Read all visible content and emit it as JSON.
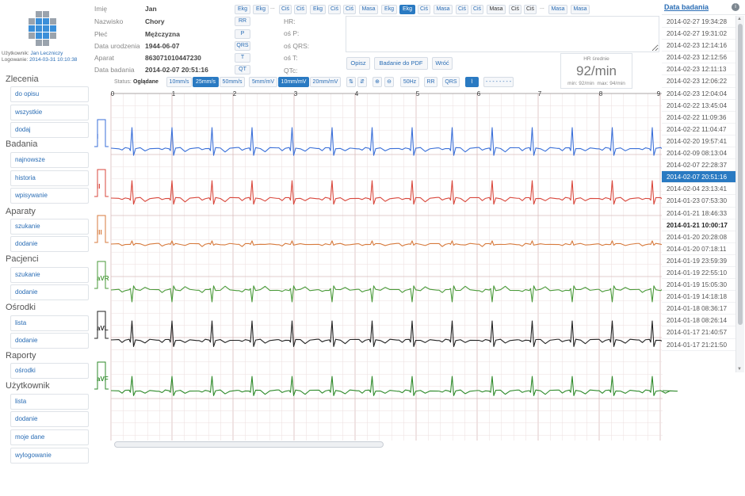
{
  "user": {
    "user_label": "Użytkownik:",
    "user_name": "Jan Leczniczy",
    "login_label": "Logowanie:",
    "login_time": "2014-03-31 10:10:38"
  },
  "sidebar": {
    "sections": [
      {
        "title": "Zlecenia",
        "items": [
          "do opisu",
          "wszystkie",
          "dodaj"
        ]
      },
      {
        "title": "Badania",
        "items": [
          "najnowsze",
          "historia",
          "wpisywanie"
        ]
      },
      {
        "title": "Aparaty",
        "items": [
          "szukanie",
          "dodanie"
        ]
      },
      {
        "title": "Pacjenci",
        "items": [
          "szukanie",
          "dodanie"
        ]
      },
      {
        "title": "Ośrodki",
        "items": [
          "lista",
          "dodanie"
        ]
      },
      {
        "title": "Raporty",
        "items": [
          "ośrodki"
        ]
      },
      {
        "title": "Użytkownik",
        "items": [
          "lista",
          "dodanie",
          "moje dane",
          "wylogowanie"
        ]
      }
    ]
  },
  "patient": {
    "first_name_label": "Imię",
    "first_name": "Jan",
    "last_name_label": "Nazwisko",
    "last_name": "Chory",
    "sex_label": "Płeć",
    "sex": "Mężczyzna",
    "birth_label": "Data urodzenia",
    "birth": "1944-06-07",
    "device_label": "Aparat",
    "device": "863071010447230",
    "exam_label": "Data badania",
    "exam": "2014-02-07 20:51:16"
  },
  "measure_buttons": [
    "RR",
    "P",
    "QRS",
    "T",
    "QT"
  ],
  "measure_labels": [
    "HR:",
    "oś P:",
    "oś QRS:",
    "oś T:",
    "QTc:"
  ],
  "history_tabs": [
    "Ekg",
    "Ekg",
    "Ciś",
    "Ciś",
    "Ekg",
    "Ciś",
    "Ciś",
    "Masa",
    "Ekg",
    "Ekg",
    "Ciś",
    "Masa",
    "Ciś",
    "Ciś",
    "Masa",
    "Ciś",
    "Ciś",
    "Masa",
    "Masa"
  ],
  "history_sep": "...",
  "actions": {
    "describe": "Opisz",
    "pdf": "Badanie do PDF",
    "back": "Wróć"
  },
  "hr": {
    "title": "HR średnie",
    "value": "92/min",
    "min": "min: 92/min",
    "max": "max: 94/min"
  },
  "toolbar": {
    "status_label": "Status:",
    "status_value": "Oglądane",
    "speeds": [
      "10mm/s",
      "25mm/s",
      "50mm/s"
    ],
    "gains": [
      "5mm/mV",
      "10mm/mV",
      "20mm/mV"
    ],
    "filter": "50Hz",
    "rr": "RR",
    "qrs": "QRS",
    "dots": "- - - - - - - -"
  },
  "ecg": {
    "time_ticks": [
      "0",
      "1",
      "2",
      "3",
      "4",
      "5",
      "6",
      "7",
      "8",
      "9"
    ],
    "leads": [
      {
        "name": "I",
        "color": "#3a6fd8"
      },
      {
        "name": "II",
        "color": "#d9473c"
      },
      {
        "name": "III",
        "color": "#d77a3c"
      },
      {
        "name": "aVR",
        "color": "#4a9a3a"
      },
      {
        "name": "aVL",
        "color": "#222222"
      },
      {
        "name": "aVF",
        "color": "#2e8a2a"
      }
    ]
  },
  "dates": {
    "header": "Data badania",
    "header_icon": "info-icon",
    "items": [
      "2014-02-27 19:34:28",
      "2014-02-27 19:31:02",
      "2014-02-23 12:14:16",
      "2014-02-23 12:12:56",
      "2014-02-23 12:11:13",
      "2014-02-23 12:06:22",
      "2014-02-23 12:04:04",
      "2014-02-22 13:45:04",
      "2014-02-22 11:09:36",
      "2014-02-22 11:04:47",
      "2014-02-20 19:57:41",
      "2014-02-09 08:13:04",
      "2014-02-07 22:28:37",
      "2014-02-07 20:51:16",
      "2014-02-04 23:13:41",
      "2014-01-23 07:53:30",
      "2014-01-21 18:46:33",
      "2014-01-21 10:00:17",
      "2014-01-20 20:28:08",
      "2014-01-20 07:18:11",
      "2014-01-19 23:59:39",
      "2014-01-19 22:55:10",
      "2014-01-19 15:05:30",
      "2014-01-19 14:18:18",
      "2014-01-18 08:36:17",
      "2014-01-18 08:26:14",
      "2014-01-17 21:40:57",
      "2014-01-17 21:21:50"
    ],
    "selected": "2014-02-07 20:51:16",
    "bold": "2014-01-21 10:00:17"
  },
  "colors": {
    "accent": "#2a7ac2",
    "grid_minor": "#ecdede",
    "grid_major": "#d9bcbc"
  }
}
